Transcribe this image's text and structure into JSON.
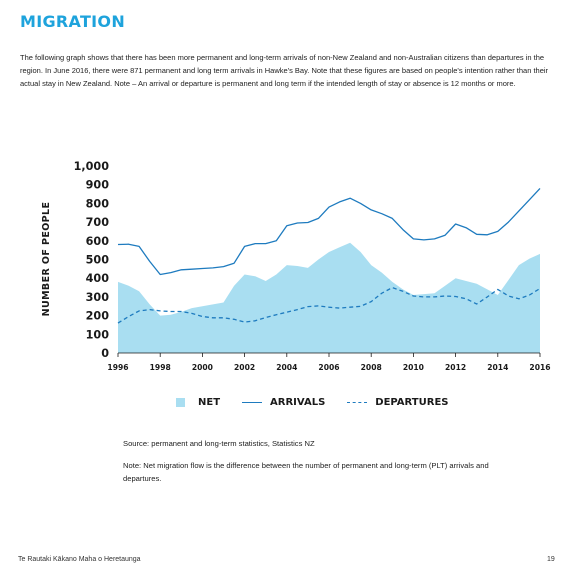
{
  "page": {
    "title": "MIGRATION",
    "intro": "The following graph shows that there has been more permanent and long-term arrivals of non-New Zealand and non-Australian citizens than departures in the region. In June 2016, there were 871 permanent and long term arrivals in Hawke's Bay. Note that these figures are based on people's intention rather than their actual stay in New Zealand. Note – An arrival or departure is permanent and long term if the intended length of stay or absence is 12 months or more.",
    "source": "Source: permanent and long-term statistics, Statistics NZ",
    "note": "Note: Net migration flow is the difference between the number of permanent and long-term (PLT) arrivals and departures.",
    "footer_left": "Te Rautaki Kākano Maha o Heretaunga",
    "page_number": "19"
  },
  "colors": {
    "title": "#1ea3dc",
    "net_fill": "#a9def1",
    "lines": "#1e7bbf"
  },
  "chart_data": {
    "type": "line",
    "ylabel": "NUMBER OF PEOPLE",
    "ylim": [
      0,
      1000
    ],
    "xlim": [
      1996,
      2016
    ],
    "yticks": [
      "0",
      "100",
      "200",
      "300",
      "400",
      "500",
      "600",
      "700",
      "800",
      "900",
      "1,000"
    ],
    "xticks": [
      "1996",
      "1998",
      "2000",
      "2002",
      "2004",
      "2006",
      "2008",
      "2010",
      "2012",
      "2014",
      "2016"
    ],
    "legend_position": "bottom",
    "grid": false,
    "series": [
      {
        "name": "NET",
        "style": "area",
        "x": [
          1996,
          1996.5,
          1997,
          1997.5,
          1998,
          1998.5,
          1999,
          1999.5,
          2000,
          2000.5,
          2001,
          2001.5,
          2002,
          2002.5,
          2003,
          2003.5,
          2004,
          2004.5,
          2005,
          2005.5,
          2006,
          2006.5,
          2007,
          2007.5,
          2008,
          2008.5,
          2009,
          2009.5,
          2010,
          2010.5,
          2011,
          2011.5,
          2012,
          2012.5,
          2013,
          2013.5,
          2014,
          2014.5,
          2015,
          2015.5,
          2016
        ],
        "values": [
          380,
          360,
          330,
          260,
          200,
          205,
          220,
          240,
          250,
          260,
          270,
          360,
          420,
          410,
          385,
          420,
          470,
          465,
          455,
          500,
          540,
          565,
          590,
          540,
          470,
          430,
          380,
          340,
          310,
          315,
          320,
          360,
          400,
          385,
          370,
          340,
          310,
          390,
          470,
          505,
          530
        ]
      },
      {
        "name": "ARRIVALS",
        "style": "solid",
        "x": [
          1996,
          1996.5,
          1997,
          1997.5,
          1998,
          1998.5,
          1999,
          1999.5,
          2000,
          2000.5,
          2001,
          2001.5,
          2002,
          2002.5,
          2003,
          2003.5,
          2004,
          2004.5,
          2005,
          2005.5,
          2006,
          2006.5,
          2007,
          2007.5,
          2008,
          2008.5,
          2009,
          2009.5,
          2010,
          2010.5,
          2011,
          2011.5,
          2012,
          2012.5,
          2013,
          2013.5,
          2014,
          2014.5,
          2015,
          2015.5,
          2016
        ],
        "values": [
          580,
          582,
          570,
          490,
          420,
          430,
          445,
          448,
          452,
          455,
          462,
          480,
          570,
          585,
          585,
          600,
          680,
          695,
          698,
          720,
          780,
          808,
          828,
          800,
          765,
          745,
          720,
          660,
          610,
          605,
          610,
          630,
          690,
          670,
          635,
          632,
          650,
          700,
          760,
          820,
          880
        ]
      },
      {
        "name": "DEPARTURES",
        "style": "dashed",
        "x": [
          1996,
          1996.5,
          1997,
          1997.5,
          1998,
          1998.5,
          1999,
          1999.5,
          2000,
          2000.5,
          2001,
          2001.5,
          2002,
          2002.5,
          2003,
          2003.5,
          2004,
          2004.5,
          2005,
          2005.5,
          2006,
          2006.5,
          2007,
          2007.5,
          2008,
          2008.5,
          2009,
          2009.5,
          2010,
          2010.5,
          2011,
          2011.5,
          2012,
          2012.5,
          2013,
          2013.5,
          2014,
          2014.5,
          2015,
          2015.5,
          2016
        ],
        "values": [
          160,
          195,
          225,
          232,
          225,
          222,
          222,
          212,
          195,
          188,
          188,
          180,
          165,
          172,
          190,
          205,
          218,
          232,
          248,
          252,
          245,
          240,
          245,
          250,
          275,
          320,
          350,
          330,
          305,
          300,
          300,
          305,
          302,
          290,
          262,
          300,
          340,
          305,
          290,
          310,
          345
        ]
      }
    ]
  }
}
